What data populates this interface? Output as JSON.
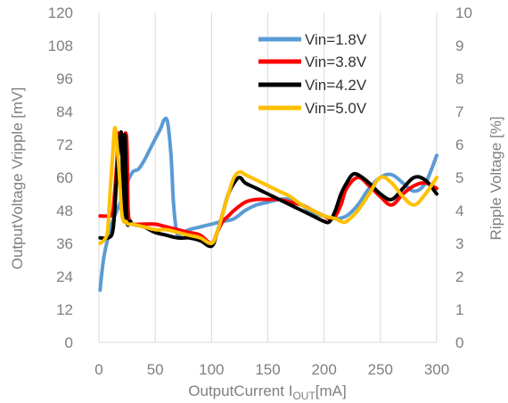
{
  "chart_data": {
    "type": "line",
    "title": "",
    "xlabel": "OutputCurrent I_OUT[mA]",
    "xlabel_main": "OutputCurrent  I",
    "xlabel_sub": "OUT",
    "xlabel_unit": "[mA]",
    "ylabel": "OutputVoltage  Vripple [mV]",
    "y2label": "Ripple  Voltage [%]",
    "xlim": [
      0,
      300
    ],
    "ylim": [
      0,
      120
    ],
    "y2lim": [
      0,
      10
    ],
    "xticks": [
      "0",
      "50",
      "100",
      "150",
      "200",
      "250",
      "300"
    ],
    "yticks": [
      "0",
      "12",
      "24",
      "36",
      "48",
      "60",
      "72",
      "84",
      "96",
      "108",
      "120"
    ],
    "y2ticks": [
      "0",
      "1",
      "2",
      "3",
      "4",
      "5",
      "6",
      "7",
      "8",
      "9",
      "10"
    ],
    "grid": "vertical",
    "legend_position": "top-right",
    "series": [
      {
        "name": "Vin=1.8V",
        "color": "#5b9bd5",
        "x": [
          1,
          4,
          8,
          12,
          16,
          20,
          25,
          30,
          35,
          40,
          45,
          50,
          55,
          58,
          61,
          64,
          66,
          68,
          70,
          75,
          80,
          90,
          100,
          110,
          120,
          130,
          140,
          150,
          160,
          170,
          180,
          190,
          200,
          210,
          220,
          230,
          240,
          250,
          260,
          270,
          280,
          290,
          300
        ],
        "y": [
          19,
          30,
          38,
          44,
          48,
          52,
          58,
          62,
          63,
          66,
          70,
          74,
          78,
          81,
          80,
          68,
          52,
          43,
          39,
          40,
          41,
          42,
          43,
          44,
          45,
          48,
          50,
          51,
          52,
          52,
          50,
          47,
          46,
          45,
          46,
          50,
          56,
          60,
          61,
          58,
          55,
          58,
          68
        ]
      },
      {
        "name": "Vin=3.8V",
        "color": "#ff0000",
        "x": [
          1,
          8,
          12,
          14,
          16,
          17,
          18,
          20,
          22,
          24,
          25,
          26,
          28,
          30,
          40,
          50,
          60,
          70,
          80,
          90,
          100,
          105,
          110,
          115,
          120,
          130,
          140,
          150,
          160,
          170,
          180,
          190,
          200,
          205,
          210,
          215,
          220,
          230,
          240,
          250,
          260,
          270,
          280,
          290,
          300
        ],
        "y": [
          46,
          46,
          47,
          55,
          66,
          76,
          72,
          70,
          74,
          76,
          70,
          48,
          44,
          43,
          43,
          43,
          42,
          41,
          40,
          39,
          36,
          40,
          44,
          46,
          48,
          51,
          52,
          52,
          52,
          51,
          50,
          48,
          46,
          45,
          46,
          50,
          56,
          60,
          57,
          53,
          50,
          54,
          57,
          58,
          56
        ]
      },
      {
        "name": "Vin=4.2V",
        "color": "#000000",
        "x": [
          1,
          8,
          12,
          14,
          16,
          18,
          20,
          21,
          22,
          23,
          24,
          25,
          28,
          30,
          40,
          50,
          60,
          70,
          80,
          90,
          100,
          105,
          110,
          115,
          120,
          125,
          130,
          140,
          150,
          160,
          170,
          180,
          190,
          200,
          205,
          210,
          215,
          220,
          225,
          230,
          240,
          250,
          260,
          270,
          280,
          290,
          300
        ],
        "y": [
          38,
          38,
          40,
          48,
          62,
          72,
          76,
          62,
          45,
          75,
          62,
          44,
          44,
          43,
          42,
          40,
          39,
          38,
          38,
          37,
          35,
          40,
          47,
          54,
          58,
          60,
          58,
          56,
          54,
          52,
          50,
          48,
          46,
          44,
          44,
          48,
          54,
          58,
          61,
          61,
          58,
          54,
          52,
          56,
          60,
          59,
          54
        ]
      },
      {
        "name": "Vin=5.0V",
        "color": "#ffc000",
        "x": [
          1,
          6,
          8,
          10,
          12,
          14,
          16,
          18,
          20,
          22,
          24,
          26,
          28,
          30,
          40,
          50,
          60,
          70,
          80,
          90,
          100,
          105,
          110,
          115,
          120,
          125,
          130,
          140,
          150,
          160,
          170,
          180,
          190,
          200,
          210,
          215,
          220,
          230,
          240,
          250,
          260,
          270,
          280,
          290,
          300
        ],
        "y": [
          36,
          38,
          42,
          55,
          67,
          78,
          72,
          62,
          48,
          44,
          44,
          43,
          43,
          43,
          42,
          41,
          41,
          40,
          39,
          38,
          36,
          40,
          47,
          54,
          60,
          62,
          61,
          59,
          57,
          55,
          53,
          50,
          48,
          46,
          45,
          44,
          44,
          48,
          54,
          60,
          58,
          53,
          50,
          54,
          60
        ]
      }
    ]
  }
}
